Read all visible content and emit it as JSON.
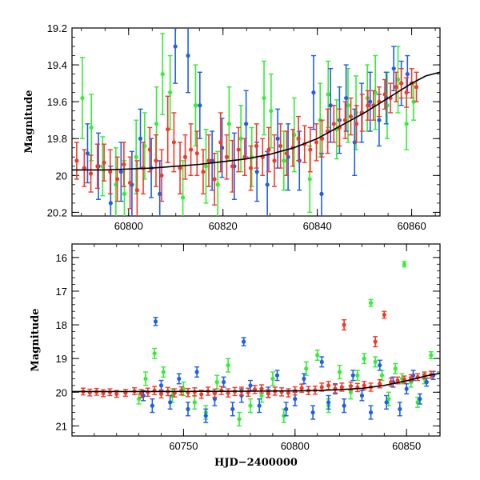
{
  "chart_data": [
    {
      "type": "scatter",
      "panel": "top",
      "title": "",
      "xlabel": "",
      "ylabel": "Magnitude",
      "xlim": [
        60788,
        60866
      ],
      "ylim": [
        20.22,
        19.2
      ],
      "y_inverted": true,
      "x_ticks": [
        60800,
        60820,
        60840,
        60860
      ],
      "y_ticks": [
        19.2,
        19.4,
        19.6,
        19.8,
        20,
        20.2
      ],
      "colors": {
        "green": "#33ee33",
        "blue": "#1f5fe6",
        "red": "#f23a2a",
        "model": "#000000"
      },
      "series": [
        {
          "color": "green",
          "x": [
            60790.2,
            60792.1,
            60794.5,
            60797.3,
            60799.1,
            60801.6,
            60803.4,
            60805.9,
            60807.2,
            60808.8,
            60811.5,
            60814.2,
            60816.4,
            60818.9,
            60821.3,
            60823.8,
            60826.1,
            60828.7,
            60830.2,
            60832.9,
            60835.1,
            60838.4,
            60840.6,
            60842.3,
            60844.1,
            60846.5,
            60848.2,
            60850.6,
            60852.3,
            60854.8,
            60857.1,
            60858.9,
            60860.4
          ],
          "y": [
            19.58,
            19.74,
            19.95,
            20.05,
            20.1,
            19.9,
            19.84,
            19.72,
            19.45,
            19.55,
            20.12,
            19.62,
            19.95,
            20.05,
            19.72,
            19.8,
            19.9,
            19.58,
            19.65,
            19.92,
            19.78,
            20.02,
            19.7,
            19.56,
            19.75,
            19.62,
            19.66,
            19.58,
            19.55,
            19.62,
            19.48,
            19.72,
            19.6
          ],
          "err": [
            0.22,
            0.18,
            0.16,
            0.2,
            0.18,
            0.2,
            0.18,
            0.2,
            0.22,
            0.2,
            0.2,
            0.22,
            0.2,
            0.18,
            0.2,
            0.18,
            0.16,
            0.2,
            0.2,
            0.16,
            0.2,
            0.18,
            0.2,
            0.18,
            0.16,
            0.2,
            0.2,
            0.18,
            0.2,
            0.18,
            0.18,
            0.14,
            0.1
          ]
        },
        {
          "color": "blue",
          "x": [
            60791.3,
            60793.6,
            60796.2,
            60798.4,
            60800.7,
            60802.5,
            60804.8,
            60806.6,
            60809.9,
            60812.6,
            60815.1,
            60817.7,
            60819.8,
            60822.4,
            60824.9,
            60827.2,
            60829.4,
            60831.6,
            60833.8,
            60836.2,
            60839.2,
            60840.9,
            60842.8,
            60844.7,
            60846.1,
            60847.9,
            60849.4,
            60851.2,
            60853.1,
            60854.6,
            60856.2,
            60857.8,
            60859.1
          ],
          "y": [
            19.88,
            19.95,
            20.15,
            19.98,
            20.05,
            19.8,
            19.96,
            20.1,
            19.3,
            19.35,
            19.62,
            19.92,
            19.85,
            19.95,
            19.72,
            19.98,
            20.05,
            19.8,
            19.9,
            19.92,
            19.55,
            20.1,
            19.62,
            19.7,
            19.58,
            19.82,
            19.66,
            19.6,
            19.7,
            19.58,
            19.42,
            19.5,
            19.45
          ],
          "err": [
            0.16,
            0.18,
            0.2,
            0.16,
            0.18,
            0.16,
            0.16,
            0.18,
            0.2,
            0.2,
            0.18,
            0.16,
            0.16,
            0.18,
            0.18,
            0.16,
            0.18,
            0.16,
            0.18,
            0.16,
            0.2,
            0.22,
            0.2,
            0.18,
            0.18,
            0.18,
            0.16,
            0.16,
            0.14,
            0.14,
            0.12,
            0.12,
            0.1
          ]
        },
        {
          "color": "red",
          "x": [
            60789.0,
            60790.6,
            60792.0,
            60793.4,
            60794.8,
            60796.1,
            60797.6,
            60799.0,
            60800.3,
            60801.8,
            60803.1,
            60804.5,
            60805.8,
            60807.0,
            60808.3,
            60809.6,
            60810.9,
            60812.0,
            60813.2,
            60814.5,
            60815.8,
            60817.0,
            60818.2,
            60819.5,
            60820.8,
            60822.0,
            60823.3,
            60824.6,
            60825.9,
            60827.1,
            60828.4,
            60829.7,
            60830.9,
            60832.2,
            60833.5,
            60834.8,
            60836.0,
            60837.3,
            60838.5,
            60839.8,
            60841.0,
            60842.2,
            60843.5,
            60844.7,
            60845.9,
            60847.1,
            60848.3,
            60849.5,
            60850.7,
            60851.9,
            60853.1,
            60854.3,
            60855.5,
            60856.7,
            60857.8,
            60858.9,
            60860.0,
            60861.0
          ],
          "y": [
            19.92,
            19.96,
            19.99,
            19.95,
            19.93,
            19.98,
            20.02,
            19.94,
            20.04,
            20.08,
            19.96,
            19.86,
            19.92,
            20.0,
            19.75,
            19.82,
            19.96,
            19.9,
            19.86,
            19.88,
            19.98,
            19.92,
            20.02,
            19.82,
            19.9,
            19.95,
            19.86,
            19.9,
            19.96,
            19.84,
            19.9,
            19.86,
            19.92,
            19.84,
            19.88,
            19.85,
            19.8,
            19.83,
            19.86,
            19.82,
            19.8,
            19.76,
            19.72,
            19.74,
            19.7,
            19.68,
            19.72,
            19.66,
            19.62,
            19.62,
            19.6,
            19.56,
            19.58,
            19.52,
            19.5,
            19.55,
            19.5,
            19.52
          ],
          "err": [
            0.1,
            0.1,
            0.1,
            0.12,
            0.1,
            0.12,
            0.12,
            0.12,
            0.14,
            0.16,
            0.14,
            0.12,
            0.14,
            0.14,
            0.18,
            0.16,
            0.14,
            0.12,
            0.14,
            0.12,
            0.12,
            0.14,
            0.14,
            0.16,
            0.12,
            0.14,
            0.12,
            0.1,
            0.12,
            0.12,
            0.1,
            0.12,
            0.14,
            0.12,
            0.12,
            0.1,
            0.12,
            0.1,
            0.12,
            0.1,
            0.1,
            0.12,
            0.1,
            0.1,
            0.1,
            0.1,
            0.1,
            0.1,
            0.08,
            0.08,
            0.08,
            0.08,
            0.08,
            0.08,
            0.08,
            0.08,
            0.08,
            0.08
          ]
        }
      ],
      "model_curve": {
        "x": [
          60788,
          60795,
          60800,
          60805,
          60810,
          60815,
          60820,
          60825,
          60830,
          60835,
          60840,
          60845,
          60850,
          60855,
          60860,
          60863,
          60866
        ],
        "y": [
          19.97,
          19.97,
          19.965,
          19.96,
          19.95,
          19.94,
          19.925,
          19.91,
          19.885,
          19.85,
          19.8,
          19.73,
          19.66,
          19.58,
          19.5,
          19.46,
          19.44
        ]
      }
    },
    {
      "type": "scatter",
      "panel": "bottom",
      "title": "",
      "xlabel": "HJD−2400000",
      "ylabel": "Magnitude",
      "xlim": [
        60700,
        60865
      ],
      "ylim": [
        21.3,
        15.6
      ],
      "y_inverted": true,
      "x_ticks": [
        60750,
        60800,
        60850
      ],
      "y_ticks": [
        16,
        17,
        18,
        19,
        20,
        21
      ],
      "colors": {
        "green": "#33ee33",
        "blue": "#1f5fe6",
        "red": "#f23a2a",
        "model": "#000000"
      },
      "series": [
        {
          "color": "green",
          "x": [
            60730,
            60733,
            60737,
            60741,
            60745,
            60750,
            60755,
            60760,
            60765,
            60770,
            60775,
            60780,
            60785,
            60790,
            60795,
            60800,
            60805,
            60810,
            60815,
            60820,
            60825,
            60828,
            60831,
            60834,
            60836,
            60839,
            60842,
            60845,
            60848,
            60849,
            60852,
            60855,
            60858,
            60861
          ],
          "y": [
            20.2,
            19.6,
            18.85,
            19.4,
            20.1,
            19.9,
            20.3,
            20.6,
            19.7,
            19.2,
            20.8,
            20.4,
            20.1,
            19.6,
            20.7,
            20.2,
            19.3,
            18.9,
            20.4,
            19.4,
            20.0,
            19.5,
            19.0,
            17.35,
            19.1,
            19.5,
            20.2,
            19.3,
            19.6,
            16.2,
            19.7,
            20.3,
            19.6,
            18.9
          ],
          "err": [
            0.15,
            0.2,
            0.15,
            0.15,
            0.2,
            0.2,
            0.2,
            0.2,
            0.2,
            0.2,
            0.2,
            0.2,
            0.2,
            0.2,
            0.2,
            0.2,
            0.2,
            0.15,
            0.2,
            0.2,
            0.2,
            0.15,
            0.15,
            0.1,
            0.15,
            0.15,
            0.2,
            0.15,
            0.15,
            0.08,
            0.15,
            0.15,
            0.15,
            0.1
          ]
        },
        {
          "color": "blue",
          "x": [
            60732,
            60736,
            60737.5,
            60740,
            60744,
            60748,
            60752,
            60756,
            60760,
            60764,
            60768,
            60772,
            60776,
            60777,
            60780,
            60784,
            60788,
            60792,
            60796,
            60800,
            60804,
            60808,
            60812,
            60815,
            60818,
            60822,
            60826,
            60830,
            60834,
            60838,
            60841,
            60844,
            60847,
            60850,
            60853,
            60856,
            60859,
            60862
          ],
          "y": [
            20.1,
            20.4,
            17.9,
            19.8,
            20.3,
            19.6,
            20.5,
            19.4,
            20.7,
            20.2,
            19.7,
            20.5,
            20.1,
            18.5,
            19.8,
            20.4,
            20.0,
            19.5,
            20.5,
            20.2,
            19.6,
            20.6,
            19.1,
            20.3,
            19.9,
            20.4,
            19.5,
            20.1,
            20.6,
            19.2,
            20.3,
            19.7,
            20.5,
            19.9,
            19.5,
            20.2,
            19.7,
            19.5
          ],
          "err": [
            0.15,
            0.2,
            0.12,
            0.15,
            0.2,
            0.15,
            0.2,
            0.15,
            0.2,
            0.2,
            0.15,
            0.2,
            0.2,
            0.12,
            0.15,
            0.2,
            0.15,
            0.15,
            0.2,
            0.2,
            0.15,
            0.2,
            0.15,
            0.2,
            0.15,
            0.2,
            0.15,
            0.15,
            0.2,
            0.15,
            0.2,
            0.15,
            0.2,
            0.15,
            0.15,
            0.15,
            0.12,
            0.12
          ]
        },
        {
          "color": "red",
          "x": [
            60705,
            60708,
            60711,
            60714,
            60717,
            60720,
            60724,
            60728,
            60731,
            60734,
            60737,
            60740,
            60743,
            60746,
            60749,
            60752,
            60755,
            60758,
            60761,
            60764,
            60767,
            60770,
            60773,
            60776,
            60779,
            60782,
            60785,
            60788,
            60791,
            60794,
            60797,
            60800,
            60803,
            60806,
            60809,
            60812,
            60815,
            60818,
            60821,
            60822,
            60825,
            60828,
            60831,
            60834,
            60836,
            60838,
            60840,
            60843,
            60846,
            60849,
            60852,
            60855,
            60858,
            60861
          ],
          "y": [
            19.98,
            20.01,
            19.99,
            20.03,
            20.0,
            20.05,
            20.02,
            19.97,
            20.04,
            20.0,
            19.95,
            20.05,
            19.98,
            20.02,
            19.96,
            20.01,
            19.99,
            20.06,
            19.97,
            20.03,
            19.95,
            20.02,
            19.98,
            19.97,
            20.0,
            19.92,
            19.9,
            20.04,
            19.97,
            19.99,
            20.02,
            19.96,
            19.88,
            19.95,
            19.94,
            19.85,
            19.8,
            19.9,
            19.85,
            18.0,
            19.82,
            19.86,
            19.8,
            19.85,
            18.5,
            19.75,
            17.7,
            19.7,
            19.65,
            19.62,
            19.58,
            19.55,
            19.5,
            19.48
          ],
          "err": [
            0.1,
            0.1,
            0.1,
            0.1,
            0.1,
            0.1,
            0.1,
            0.1,
            0.12,
            0.12,
            0.12,
            0.12,
            0.12,
            0.12,
            0.12,
            0.12,
            0.12,
            0.12,
            0.12,
            0.12,
            0.12,
            0.12,
            0.12,
            0.12,
            0.12,
            0.12,
            0.12,
            0.12,
            0.12,
            0.12,
            0.12,
            0.12,
            0.12,
            0.12,
            0.12,
            0.12,
            0.12,
            0.12,
            0.12,
            0.15,
            0.12,
            0.12,
            0.12,
            0.12,
            0.15,
            0.12,
            0.1,
            0.12,
            0.1,
            0.1,
            0.1,
            0.1,
            0.1,
            0.1
          ]
        }
      ],
      "model_curve": {
        "x": [
          60700,
          60720,
          60740,
          60760,
          60780,
          60800,
          60810,
          60820,
          60830,
          60840,
          60850,
          60860,
          60865
        ],
        "y": [
          19.98,
          19.98,
          19.98,
          19.975,
          19.97,
          19.96,
          19.95,
          19.925,
          19.885,
          19.8,
          19.66,
          19.5,
          19.44
        ]
      }
    }
  ]
}
